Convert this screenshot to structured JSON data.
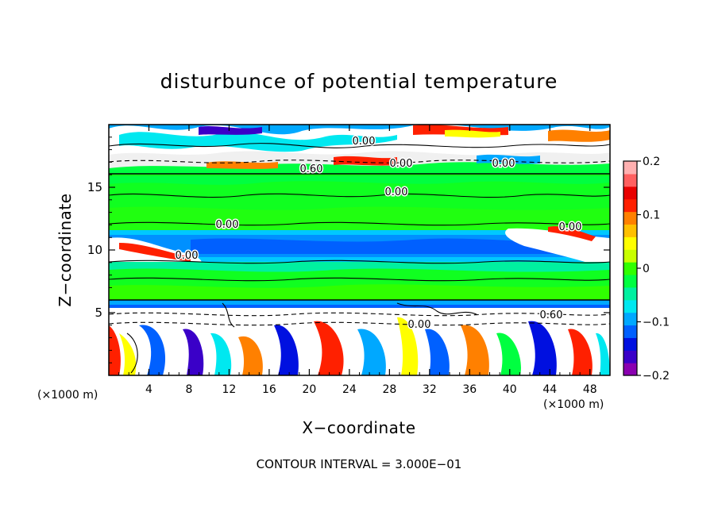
{
  "chart_data": {
    "type": "heatmap",
    "title": "disturbunce of potential temperature",
    "xlabel": "X−coordinate",
    "ylabel": "Z−coordinate",
    "x_unit_label": "(×1000 m)",
    "y_unit_label": "(×1000 m)",
    "xlim": [
      0,
      50
    ],
    "ylim": [
      0,
      20
    ],
    "x_ticks": [
      4,
      8,
      12,
      16,
      20,
      24,
      28,
      32,
      36,
      40,
      44,
      48
    ],
    "y_ticks": [
      5,
      10,
      15
    ],
    "colorbar": {
      "range": [
        -0.2,
        0.2
      ],
      "tick_labels": [
        "0.2",
        "0.1",
        "0",
        "−0.1",
        "−0.2"
      ],
      "colors": [
        "#8a00b0",
        "#3a00c8",
        "#0010e0",
        "#0060ff",
        "#00a8ff",
        "#00e8f0",
        "#00f0a0",
        "#00ff40",
        "#30ff00",
        "#c8ff00",
        "#ffff00",
        "#ffc000",
        "#ff8000",
        "#ff2000",
        "#e80000",
        "#ff6060",
        "#ffb0b0"
      ]
    },
    "contour_labels": [
      "0.00",
      "0.60",
      "0.00",
      "0.00",
      "0.00",
      "0.00",
      "0.00",
      "0.00",
      "0.60",
      "0.00"
    ],
    "footer": "CONTOUR INTERVAL = 3.000E−01"
  }
}
